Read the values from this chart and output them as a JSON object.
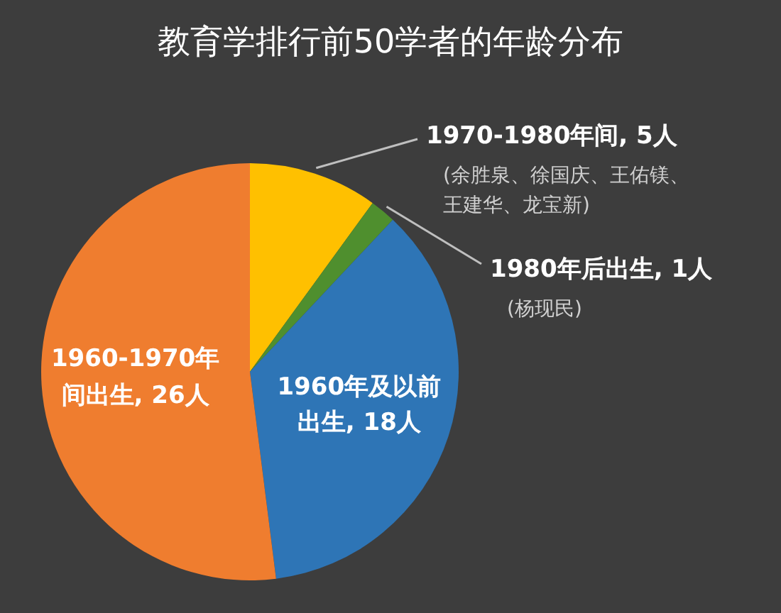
{
  "chart_data": {
    "type": "pie",
    "title": "教育学排行前50学者的年龄分布",
    "categories": [
      "1970-1980年间",
      "1980年后出生",
      "1960年及以前出生",
      "1960-1970年间出生"
    ],
    "values": [
      5,
      1,
      18,
      26
    ],
    "value_labels": [
      "5人",
      "1人",
      "18人",
      "26人"
    ],
    "colors": [
      "#ffc000",
      "#4f8f2e",
      "#2e75b6",
      "#ef7d2f"
    ],
    "annotations": [
      "(余胜泉、徐国庆、王佑镁、王建华、龙宝新)",
      "(杨现民)"
    ]
  }
}
